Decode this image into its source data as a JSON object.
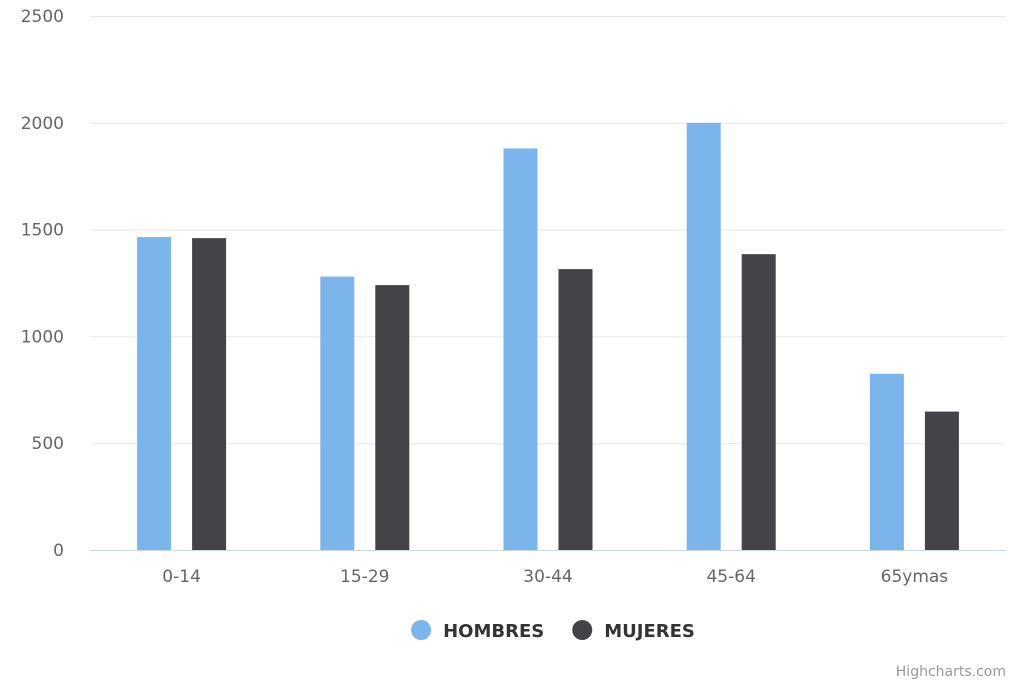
{
  "chart_data": {
    "type": "bar",
    "categories": [
      "0-14",
      "15-29",
      "30-44",
      "45-64",
      "65ymas"
    ],
    "series": [
      {
        "name": "HOMBRES",
        "values": [
          1465,
          1280,
          1880,
          2000,
          825
        ],
        "color": "#7cb5ec"
      },
      {
        "name": "MUJERES",
        "values": [
          1460,
          1240,
          1315,
          1385,
          648
        ],
        "color": "#434348"
      }
    ],
    "y_ticks": [
      "0",
      "500",
      "1000",
      "1500",
      "2000",
      "2500"
    ],
    "ylim": [
      0,
      2500
    ],
    "grid": true,
    "legend_position": "bottom-center",
    "gridline_color": "#e6e6e6",
    "axis_line_color": "#ccd6eb"
  },
  "credits": "Highcharts.com"
}
